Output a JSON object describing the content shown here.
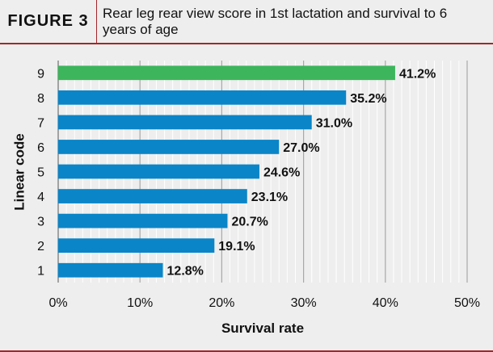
{
  "header": {
    "figure_label": "FIGURE 3",
    "title": "Rear leg rear view score in 1st lactation and survival to 6 years of age"
  },
  "chart_data": {
    "type": "bar",
    "orientation": "horizontal",
    "categories": [
      "1",
      "2",
      "3",
      "4",
      "5",
      "6",
      "7",
      "8",
      "9"
    ],
    "values": [
      12.8,
      19.1,
      20.7,
      23.1,
      24.6,
      27.0,
      31.0,
      35.2,
      41.2
    ],
    "value_labels": [
      "12.8%",
      "19.1%",
      "20.7%",
      "23.1%",
      "24.6%",
      "27.0%",
      "31.0%",
      "35.2%",
      "41.2%"
    ],
    "bar_colors": [
      "#0a85c8",
      "#0a85c8",
      "#0a85c8",
      "#0a85c8",
      "#0a85c8",
      "#0a85c8",
      "#0a85c8",
      "#0a85c8",
      "#3db55c"
    ],
    "xlabel": "Survival rate",
    "ylabel": "Linear code",
    "xlim": [
      0,
      50
    ],
    "x_ticks": [
      0,
      10,
      20,
      30,
      40,
      50
    ],
    "x_tick_labels": [
      "0%",
      "10%",
      "20%",
      "30%",
      "40%",
      "50%"
    ],
    "grid": "vertical"
  }
}
